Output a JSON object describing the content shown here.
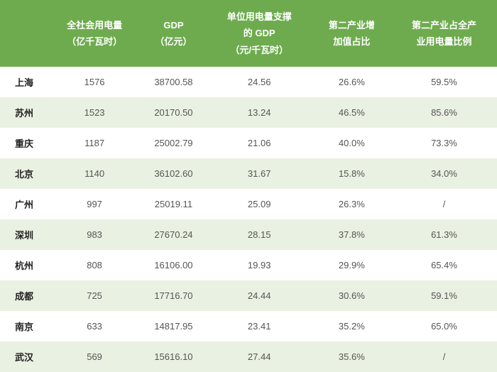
{
  "table": {
    "header_bg": "#6eab4e",
    "header_color": "#ffffff",
    "row_alt_bg": "#e9f1e2",
    "row_bg": "#ffffff",
    "body_color": "#555555",
    "city_color": "#222222",
    "header_fontsize": 13,
    "body_fontsize": 13,
    "columns": [
      "",
      "全社会用电量\n（亿千瓦时）",
      "GDP\n（亿元）",
      "单位用电量支撑\n的 GDP\n（元/千瓦时）",
      "第二产业增\n加值占比",
      "第二产业占全产\n业用电量比例"
    ],
    "rows": [
      {
        "city": "上海",
        "power": "1576",
        "gdp": "38700.58",
        "gdp_per_kwh": "24.56",
        "sec_ind_share": "26.6%",
        "sec_ind_power": "59.5%"
      },
      {
        "city": "苏州",
        "power": "1523",
        "gdp": "20170.50",
        "gdp_per_kwh": "13.24",
        "sec_ind_share": "46.5%",
        "sec_ind_power": "85.6%"
      },
      {
        "city": "重庆",
        "power": "1187",
        "gdp": "25002.79",
        "gdp_per_kwh": "21.06",
        "sec_ind_share": "40.0%",
        "sec_ind_power": "73.3%"
      },
      {
        "city": "北京",
        "power": "1140",
        "gdp": "36102.60",
        "gdp_per_kwh": "31.67",
        "sec_ind_share": "15.8%",
        "sec_ind_power": "34.0%"
      },
      {
        "city": "广州",
        "power": "997",
        "gdp": "25019.11",
        "gdp_per_kwh": "25.09",
        "sec_ind_share": "26.3%",
        "sec_ind_power": "/"
      },
      {
        "city": "深圳",
        "power": "983",
        "gdp": "27670.24",
        "gdp_per_kwh": "28.15",
        "sec_ind_share": "37.8%",
        "sec_ind_power": "61.3%"
      },
      {
        "city": "杭州",
        "power": "808",
        "gdp": "16106.00",
        "gdp_per_kwh": "19.93",
        "sec_ind_share": "29.9%",
        "sec_ind_power": "65.4%"
      },
      {
        "city": "成都",
        "power": "725",
        "gdp": "17716.70",
        "gdp_per_kwh": "24.44",
        "sec_ind_share": "30.6%",
        "sec_ind_power": "59.1%"
      },
      {
        "city": "南京",
        "power": "633",
        "gdp": "14817.95",
        "gdp_per_kwh": "23.41",
        "sec_ind_share": "35.2%",
        "sec_ind_power": "65.0%"
      },
      {
        "city": "武汉",
        "power": "569",
        "gdp": "15616.10",
        "gdp_per_kwh": "27.44",
        "sec_ind_share": "35.6%",
        "sec_ind_power": "/"
      }
    ]
  }
}
